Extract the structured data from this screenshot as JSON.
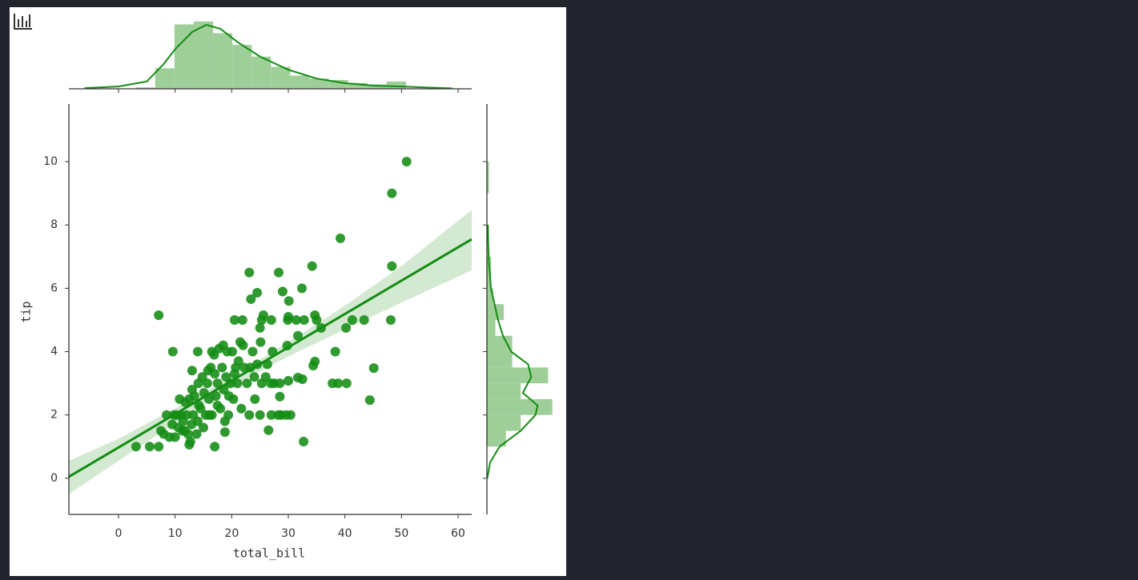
{
  "chart_data": [
    {
      "type": "scatter",
      "x_label": "total_bill",
      "y_label": "tip",
      "color": "#138c13",
      "xlim": [
        -8.77,
        62.4
      ],
      "ylim": [
        -1.14,
        11.82
      ],
      "xticks": [
        0,
        10,
        20,
        30,
        40,
        50,
        60
      ],
      "yticks": [
        0,
        2,
        4,
        6,
        8,
        10
      ],
      "x": [
        50.9,
        48.3,
        39.2,
        48.3,
        34.2,
        23.1,
        28.3,
        32.4,
        24.5,
        29.0,
        30.1,
        23.4,
        7.1,
        20.5,
        21.9,
        25.6,
        25.3,
        27.0,
        30.0,
        29.9,
        31.4,
        32.8,
        34.7,
        35.0,
        35.8,
        41.3,
        43.4,
        40.2,
        48.1,
        25.0,
        31.7,
        45.1,
        44.4,
        38.3,
        40.3,
        38.8,
        37.8,
        34.7,
        34.4,
        32.5,
        31.7,
        32.7,
        26.5,
        28.5,
        30.0,
        29.6,
        30.4,
        28.7,
        27.0,
        29.8,
        27.2,
        25.1,
        9.6,
        14.0,
        3.1,
        5.5,
        7.1,
        12.5,
        12.7,
        17.0,
        18.8,
        10.3,
        10.6,
        11.0,
        11.4,
        11.7,
        12.0,
        12.5,
        12.9,
        13.2,
        13.4,
        13.8,
        14.1,
        14.5,
        14.8,
        15.0,
        15.4,
        15.7,
        16.0,
        16.3,
        16.5,
        16.9,
        17.2,
        17.5,
        17.8,
        18.0,
        18.3,
        18.6,
        19.0,
        19.4,
        19.8,
        20.1,
        20.3,
        20.7,
        21.0,
        21.5,
        21.7,
        22.2,
        22.7,
        23.1,
        23.3,
        23.7,
        24.1,
        24.5,
        25.0,
        25.3,
        26.0,
        26.9,
        27.5,
        28.2,
        28.5,
        7.5,
        8.5,
        9.0,
        9.5,
        8.0,
        9.8,
        10.0,
        11.3,
        12.3,
        13.0,
        14.0,
        15.1,
        16.5,
        17.0,
        18.5,
        19.2,
        20.5,
        22.0,
        24.0,
        26.3,
        19.5,
        21.2,
        18.8,
        17.5,
        15.8,
        13.0,
        14.2,
        16.0,
        10.8,
        11.8
      ],
      "y": [
        10.0,
        9.0,
        7.58,
        6.7,
        6.7,
        6.5,
        6.5,
        6.0,
        5.86,
        5.9,
        5.6,
        5.66,
        5.15,
        5.0,
        5.0,
        5.15,
        5.0,
        5.0,
        5.1,
        5.0,
        5.0,
        5.0,
        5.15,
        5.0,
        4.75,
        5.0,
        5.0,
        4.75,
        5.0,
        4.75,
        4.5,
        3.48,
        2.47,
        4.0,
        3.0,
        3.0,
        3.0,
        3.69,
        3.56,
        3.13,
        3.18,
        1.16,
        1.52,
        2.58,
        3.08,
        2.0,
        2.0,
        2.0,
        2.0,
        4.19,
        4.0,
        4.3,
        4.0,
        4.0,
        1.0,
        1.0,
        1.0,
        1.06,
        1.16,
        1.0,
        1.46,
        2.0,
        1.6,
        2.0,
        1.8,
        1.5,
        2.0,
        2.5,
        1.7,
        2.0,
        2.6,
        1.4,
        3.0,
        2.2,
        3.2,
        1.6,
        2.0,
        3.0,
        2.5,
        3.5,
        2.0,
        3.9,
        2.6,
        3.0,
        4.1,
        2.2,
        3.5,
        2.8,
        3.2,
        2.0,
        3.0,
        4.0,
        2.5,
        3.5,
        3.0,
        4.3,
        2.2,
        3.5,
        3.0,
        2.0,
        3.5,
        4.0,
        2.5,
        3.6,
        2.0,
        3.0,
        3.2,
        3.0,
        3.0,
        2.0,
        3.0,
        1.5,
        2.0,
        1.3,
        1.7,
        1.4,
        2.0,
        1.3,
        1.5,
        1.4,
        2.8,
        1.8,
        2.7,
        4.0,
        3.3,
        4.2,
        4.0,
        3.3,
        4.2,
        3.2,
        3.6,
        2.6,
        3.7,
        1.8,
        2.3,
        3.4,
        3.4,
        2.3,
        2.0,
        2.5,
        2.4
      ],
      "regression": {
        "color": "#138c13",
        "x": [
          -8.77,
          62.4
        ],
        "y": [
          0.05,
          7.55
        ]
      },
      "ci": {
        "color": "#d3e9d1",
        "x": [
          -8.77,
          0,
          10,
          20,
          30,
          40,
          50,
          62.4
        ],
        "lower": [
          -0.5,
          0.55,
          1.75,
          2.9,
          3.85,
          4.7,
          5.55,
          6.57
        ],
        "upper": [
          0.55,
          1.25,
          2.2,
          3.2,
          4.3,
          5.45,
          6.7,
          8.48
        ]
      }
    },
    {
      "type": "histogram",
      "orientation": "vertical",
      "color": "#9fcf98",
      "kde_color": "#138c13",
      "lim": [
        0,
        47
      ],
      "bins": [
        3.07,
        6.48,
        9.89,
        13.3,
        16.71,
        20.12,
        23.53,
        26.94,
        30.35,
        33.76,
        37.17,
        40.58,
        43.99,
        47.4,
        50.81
      ],
      "counts": [
        1,
        14,
        44,
        46,
        38,
        30,
        22,
        15,
        9,
        7,
        6,
        4,
        3,
        5
      ],
      "kde_x": [
        -6,
        0,
        5,
        8,
        10,
        13,
        15.5,
        18,
        21,
        25,
        30,
        35,
        40,
        45,
        50,
        55,
        59
      ],
      "kde_y": [
        0.5,
        1.6,
        5,
        17,
        27,
        38.8,
        43.7,
        41,
        32,
        22,
        13,
        7,
        3.8,
        2.2,
        1.6,
        0.8,
        0.3
      ]
    },
    {
      "type": "histogram",
      "orientation": "horizontal",
      "color": "#9fcf98",
      "kde_color": "#138c13",
      "lim": [
        0,
        33
      ],
      "bins": [
        1,
        1.5,
        2,
        2.5,
        3,
        3.5,
        4,
        4.5,
        5,
        5.5,
        6,
        6.5,
        7,
        7.5,
        8,
        8.5,
        9,
        9.5,
        10
      ],
      "counts": [
        9,
        16,
        31,
        16,
        29,
        12,
        12,
        4,
        8,
        3,
        2,
        2,
        0,
        1,
        0,
        0,
        1,
        1
      ],
      "kde_x": [
        0,
        0.5,
        1,
        1.5,
        2,
        2.3,
        2.7,
        3.2,
        3.6,
        4,
        4.5,
        5,
        6,
        7,
        8
      ],
      "kde_y": [
        0.2,
        1.5,
        6,
        16,
        23,
        24,
        17,
        21,
        19.5,
        11.5,
        7.6,
        5.3,
        1.9,
        0.8,
        0.4
      ]
    }
  ]
}
